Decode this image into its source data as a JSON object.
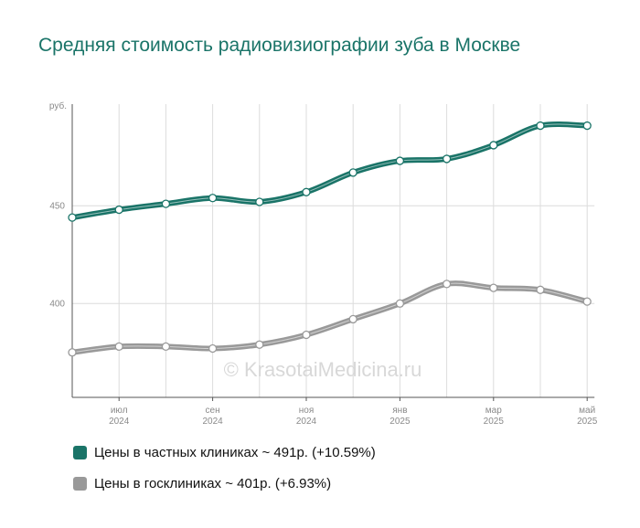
{
  "chart_data": {
    "type": "line",
    "title": "Средняя стоимость радиовизиографии зуба в Москве",
    "ylabel": "руб.",
    "y_ticks": [
      "450",
      "400"
    ],
    "ylim": [
      352,
      502
    ],
    "x_ticks": [
      {
        "month": "июл",
        "year": "2024"
      },
      {
        "month": "сен",
        "year": "2024"
      },
      {
        "month": "ноя",
        "year": "2024"
      },
      {
        "month": "янв",
        "year": "2025"
      },
      {
        "month": "мар",
        "year": "2025"
      },
      {
        "month": "май",
        "year": "2025"
      }
    ],
    "x": [
      "2024-06",
      "2024-07",
      "2024-08",
      "2024-09",
      "2024-10",
      "2024-11",
      "2024-12",
      "2025-01",
      "2025-02",
      "2025-03",
      "2025-04",
      "2025-05"
    ],
    "series": [
      {
        "name": "Цены в частных клиниках ~ 491р. (+10.59%)",
        "color": "#1a7468",
        "values": [
          444,
          448,
          451,
          454,
          452,
          457,
          467,
          473,
          474,
          481,
          491,
          491
        ]
      },
      {
        "name": "Цены в госклиниках ~ 401р. (+6.93%)",
        "color": "#999999",
        "values": [
          375,
          378,
          378,
          377,
          379,
          384,
          392,
          400,
          410,
          408,
          407,
          401
        ]
      }
    ],
    "grid": true,
    "legend_position": "bottom-left"
  },
  "watermark": "© KrasotaiMedicina.ru"
}
